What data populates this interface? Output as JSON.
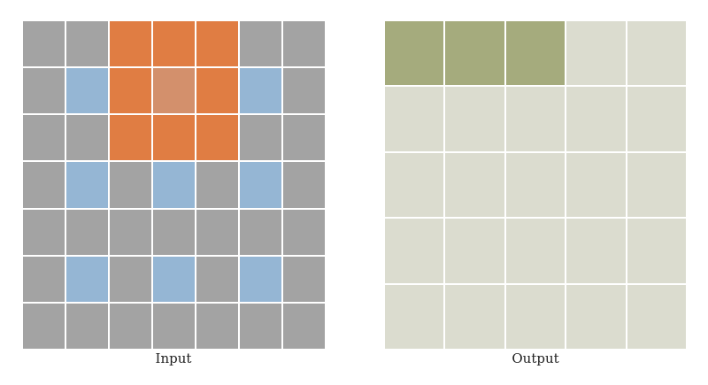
{
  "palette": {
    "G": "#a3a3a3",
    "O": "#e07d43",
    "P": "#d3906c",
    "B": "#95b6d4",
    "K": "#a5ab7d",
    "E": "#dbdccf"
  },
  "input": {
    "caption": "Input",
    "rows": [
      [
        "G",
        "G",
        "O",
        "O",
        "O",
        "G",
        "G"
      ],
      [
        "G",
        "B",
        "O",
        "P",
        "O",
        "B",
        "G"
      ],
      [
        "G",
        "G",
        "O",
        "O",
        "O",
        "G",
        "G"
      ],
      [
        "G",
        "B",
        "G",
        "B",
        "G",
        "B",
        "G"
      ],
      [
        "G",
        "G",
        "G",
        "G",
        "G",
        "G",
        "G"
      ],
      [
        "G",
        "B",
        "G",
        "B",
        "G",
        "B",
        "G"
      ],
      [
        "G",
        "G",
        "G",
        "G",
        "G",
        "G",
        "G"
      ]
    ]
  },
  "output": {
    "caption": "Output",
    "rows": [
      [
        "K",
        "K",
        "K",
        "E",
        "E"
      ],
      [
        "E",
        "E",
        "E",
        "E",
        "E"
      ],
      [
        "E",
        "E",
        "E",
        "E",
        "E"
      ],
      [
        "E",
        "E",
        "E",
        "E",
        "E"
      ],
      [
        "E",
        "E",
        "E",
        "E",
        "E"
      ]
    ]
  }
}
